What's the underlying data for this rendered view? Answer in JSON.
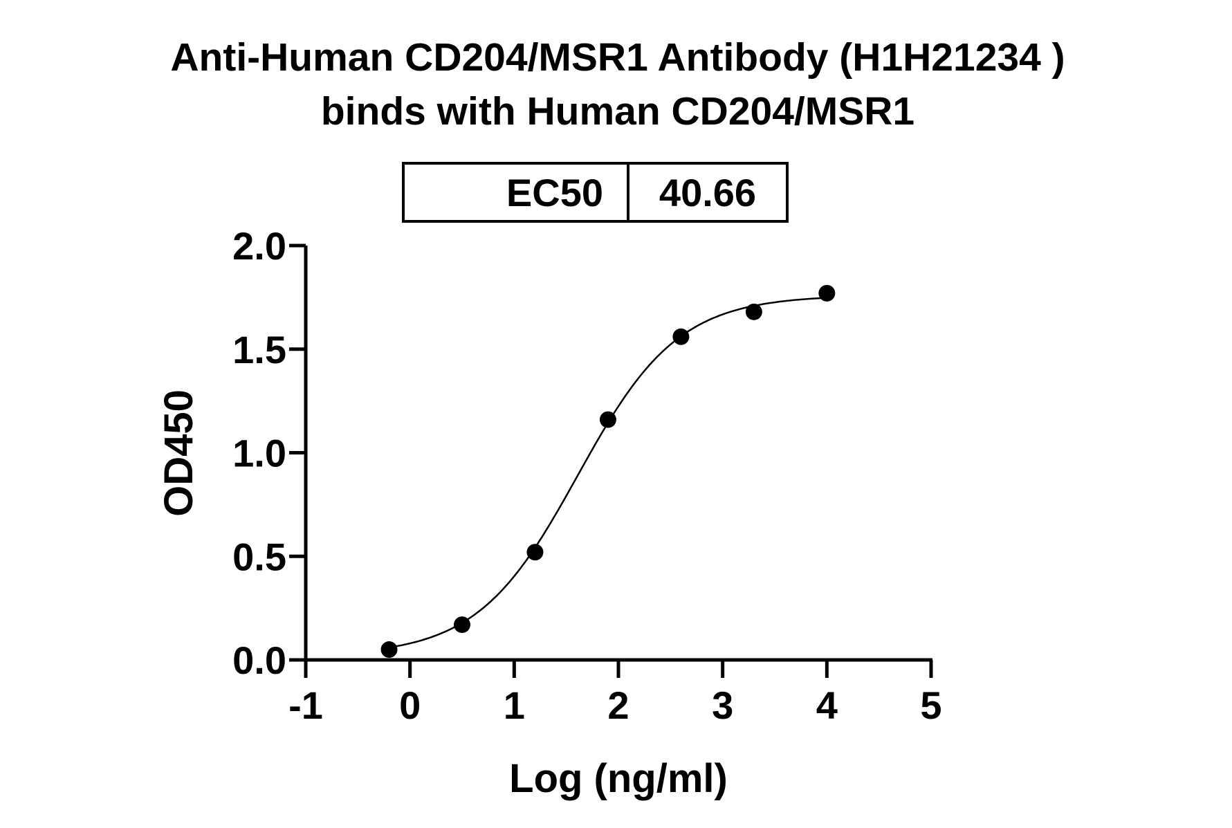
{
  "chart_data": {
    "type": "scatter",
    "title": [
      "Anti-Human CD204/MSR1 Antibody (H1H21234 )",
      "binds with Human CD204/MSR1"
    ],
    "xlabel": "Log (ng/ml)",
    "ylabel": "OD450",
    "xlim": [
      -1,
      5
    ],
    "ylim": [
      0,
      2.0
    ],
    "xticks": [
      "-1",
      "0",
      "1",
      "2",
      "3",
      "4",
      "5"
    ],
    "yticks": [
      "0.0",
      "0.5",
      "1.0",
      "1.5",
      "2.0"
    ],
    "grid": false,
    "points": {
      "x": [
        -0.2,
        0.5,
        1.2,
        1.9,
        2.6,
        3.3,
        4.0
      ],
      "y": [
        0.05,
        0.17,
        0.52,
        1.16,
        1.56,
        1.68,
        1.77
      ]
    },
    "fit": {
      "model": "4PL",
      "bottom": 0.02,
      "top": 1.76,
      "logEC50": 1.609,
      "hill": 0.9,
      "x_range": [
        -0.2,
        4.0
      ]
    },
    "ec50_table": {
      "label": "EC50",
      "value": "40.66"
    },
    "color": "#000000"
  }
}
